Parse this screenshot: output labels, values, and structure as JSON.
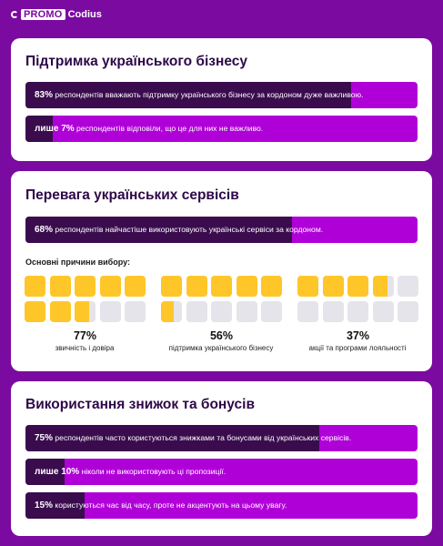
{
  "brand": {
    "promo": "PROMO",
    "codius": "Codius"
  },
  "colors": {
    "background": "#7a0aa0",
    "bar_accent": "#b000d8",
    "bar_fill": "#3a0c4e",
    "cell_fill": "#ffc629",
    "cell_empty": "#e5e4ea"
  },
  "section1": {
    "title": "Підтримка українського бізнесу",
    "bars": [
      {
        "value": "83%",
        "prefix": "",
        "text": " респондентів вважають підтримку українського бізнесу за кордоном дуже важливою.",
        "percent": 83
      },
      {
        "value": "7%",
        "prefix": "лише ",
        "text": " респондентів відповіли, що це для них не важливо.",
        "percent": 7
      }
    ]
  },
  "section2": {
    "title": "Перевага українських сервісів",
    "bar": {
      "value": "68%",
      "prefix": "",
      "text": " респондентів найчастіше використовують українські сервіси за кордоном.",
      "percent": 68
    },
    "subtitle": "Основні причини вибору:",
    "reasons": [
      {
        "value": "77%",
        "label": "звичність і довіра",
        "percent": 77
      },
      {
        "value": "56%",
        "label": "підтримка українського бізнесу",
        "percent": 56
      },
      {
        "value": "37%",
        "label": "акції та програми лояльності",
        "percent": 37
      }
    ]
  },
  "section3": {
    "title": "Використання знижок та бонусів",
    "bars": [
      {
        "value": "75%",
        "prefix": "",
        "text": " респондентів часто користуються знижками та бонусами від українських сервісів.",
        "percent": 75
      },
      {
        "value": "10%",
        "prefix": "лише ",
        "text": " ніколи не використовують ці пропозиції.",
        "percent": 10
      },
      {
        "value": "15%",
        "prefix": "",
        "text": " користуються час від часу, проте не акцентують на цьому увагу.",
        "percent": 15
      }
    ]
  }
}
